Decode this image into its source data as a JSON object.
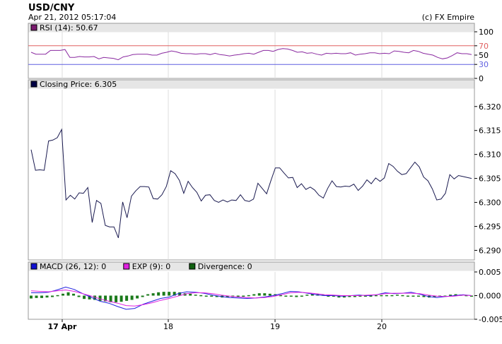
{
  "header": {
    "title": "USD/CNY",
    "timestamp": "Apr 21, 2012 05:17:04",
    "credit": "(c) FX Empire"
  },
  "x_axis": {
    "labels": [
      "17 Apr",
      "18",
      "19",
      "20"
    ],
    "bold_first": true
  },
  "chart_data": [
    {
      "type": "line",
      "panel": "rsi",
      "legend": "RSI (14): 50.67",
      "legend_color": "#7a1a6e",
      "line_color": "#8a2aa0",
      "ylim": [
        0,
        100
      ],
      "y_ticks": [
        "100",
        "70",
        "50",
        "30",
        "0"
      ],
      "y_tick_values": [
        100,
        70,
        50,
        30,
        0
      ],
      "reference_lines": [
        {
          "value": 70,
          "color": "#e06060",
          "label": "70"
        },
        {
          "value": 30,
          "color": "#6060e0",
          "label": "30"
        }
      ],
      "values": [
        56,
        52,
        52,
        52,
        60,
        60,
        60,
        62,
        45,
        45,
        47,
        46,
        46,
        47,
        42,
        45,
        44,
        43,
        40,
        46,
        48,
        51,
        52,
        52,
        52,
        50,
        50,
        54,
        56,
        59,
        57,
        54,
        53,
        53,
        52,
        53,
        53,
        51,
        54,
        51,
        50,
        48,
        50,
        51,
        53,
        54,
        52,
        56,
        60,
        60,
        58,
        62,
        64,
        63,
        60,
        56,
        57,
        54,
        55,
        52,
        50,
        54,
        53,
        54,
        53,
        53,
        55,
        50,
        52,
        53,
        55,
        55,
        53,
        54,
        53,
        59,
        58,
        56,
        55,
        60,
        58,
        54,
        52,
        50,
        45,
        42,
        44,
        49,
        55,
        53,
        53,
        51
      ]
    },
    {
      "type": "line",
      "panel": "price",
      "legend": "Closing Price: 6.305",
      "legend_color": "#000044",
      "line_color": "#1a1a50",
      "ylim": [
        6.288,
        6.3235
      ],
      "y_ticks": [
        "6.320",
        "6.315",
        "6.310",
        "6.305",
        "6.300",
        "6.295",
        "6.290"
      ],
      "y_tick_values": [
        6.32,
        6.315,
        6.31,
        6.305,
        6.3,
        6.295,
        6.29
      ],
      "values": [
        6.311,
        6.3067,
        6.3068,
        6.3067,
        6.3128,
        6.313,
        6.3135,
        6.3152,
        6.3005,
        6.3015,
        6.3007,
        6.302,
        6.3019,
        6.3031,
        6.2958,
        6.3004,
        6.2998,
        6.2952,
        6.2949,
        6.2949,
        6.2926,
        6.3001,
        6.2968,
        6.3013,
        6.3024,
        6.3033,
        6.3033,
        6.3032,
        6.3008,
        6.3007,
        6.3016,
        6.3033,
        6.3066,
        6.306,
        6.3046,
        6.3019,
        6.3044,
        6.3031,
        6.3021,
        6.3003,
        6.3015,
        6.3016,
        6.3004,
        6.3,
        6.3005,
        6.3001,
        6.3005,
        6.3004,
        6.3016,
        6.3004,
        6.3002,
        6.3007,
        6.304,
        6.3029,
        6.3018,
        6.3046,
        6.3072,
        6.3072,
        6.3061,
        6.3051,
        6.3052,
        6.3031,
        6.3039,
        6.3027,
        6.3032,
        6.3026,
        6.3015,
        6.3009,
        6.3029,
        6.3045,
        6.3033,
        6.3032,
        6.3034,
        6.3033,
        6.3038,
        6.3025,
        6.3034,
        6.3047,
        6.3039,
        6.3051,
        6.3044,
        6.3051,
        6.3081,
        6.3075,
        6.3065,
        6.3058,
        6.306,
        6.3072,
        6.3084,
        6.3074,
        6.3053,
        6.3045,
        6.3028,
        6.3005,
        6.3007,
        6.3019,
        6.3058,
        6.3049,
        6.3056,
        6.3054,
        6.3052,
        6.305
      ]
    },
    {
      "type": "line",
      "panel": "macd",
      "ylim": [
        -0.005,
        0.005
      ],
      "y_ticks": [
        "0.005",
        "0.000",
        "-0.005"
      ],
      "y_tick_values": [
        0.005,
        0.0,
        -0.005
      ],
      "legend": [
        {
          "text": "MACD (26, 12): 0",
          "color": "#1010d0"
        },
        {
          "text": "EXP (9): 0",
          "color": "#e020e0"
        },
        {
          "text": "Divergence: 0",
          "color": "#106010"
        }
      ],
      "series": [
        {
          "name": "MACD (26, 12)",
          "color": "#2020e0",
          "values": [
            0.0006,
            0.0006,
            0.0007,
            0.0012,
            0.0018,
            0.0013,
            0.0004,
            -0.0004,
            -0.0012,
            -0.0016,
            -0.0023,
            -0.0029,
            -0.0027,
            -0.0018,
            -0.0012,
            -0.0006,
            -0.0003,
            0.0004,
            0.0008,
            0.0007,
            0.0005,
            0.0001,
            -0.0002,
            -0.0004,
            -0.0005,
            -0.0006,
            -0.0005,
            -0.0003,
            0.0,
            0.0004,
            0.0009,
            0.0008,
            0.0005,
            0.0002,
            0.0,
            0.0,
            -0.0001,
            0.0,
            0.0001,
            0.0,
            0.0002,
            0.0006,
            0.0004,
            0.0005,
            0.0007,
            0.0003,
            -0.0002,
            -0.0004,
            -0.0002,
            0.0,
            0.0002,
            0.0
          ]
        },
        {
          "name": "EXP (9)",
          "color": "#e020e0",
          "values": [
            0.001,
            0.0009,
            0.0008,
            0.001,
            0.0012,
            0.0009,
            0.0004,
            -0.0001,
            -0.0007,
            -0.0012,
            -0.0016,
            -0.0021,
            -0.0022,
            -0.0019,
            -0.0015,
            -0.001,
            -0.0006,
            -0.0001,
            0.0004,
            0.0006,
            0.0006,
            0.0004,
            0.0001,
            -0.0001,
            -0.0003,
            -0.0004,
            -0.0005,
            -0.0004,
            -0.0002,
            0.0002,
            0.0006,
            0.0007,
            0.0006,
            0.0004,
            0.0002,
            0.0001,
            0.0,
            0.0,
            0.0,
            0.0001,
            0.0002,
            0.0004,
            0.0005,
            0.0005,
            0.0005,
            0.0004,
            0.0001,
            -0.0001,
            -0.0002,
            -0.0001,
            0.0001,
            0.0
          ]
        }
      ],
      "divergence": [
        -0.0006,
        -0.0005,
        -0.0005,
        -0.0004,
        -0.0003,
        0.0001,
        0.0004,
        0.0007,
        0.0004,
        -0.0003,
        -0.0007,
        -0.0008,
        -0.0009,
        -0.0011,
        -0.0012,
        -0.0014,
        -0.0014,
        -0.0013,
        -0.0011,
        -0.0009,
        -0.0006,
        -0.0003,
        0.0003,
        0.0005,
        0.0007,
        0.0008,
        0.0008,
        0.0008,
        0.0007,
        0.0005,
        0.0004,
        0.0002,
        0.0001,
        0.0,
        -0.0002,
        -0.0003,
        -0.0004,
        -0.0004,
        -0.0003,
        -0.0002,
        0.0,
        0.0001,
        0.0003,
        0.0005,
        0.0005,
        0.0004,
        0.0003,
        0.0001,
        -0.0001,
        -0.0002,
        -0.0003,
        -0.0002,
        0.0002,
        0.0003,
        0.0003,
        0.0002,
        0.0,
        -0.0001,
        -0.0004,
        -0.0004,
        -0.0003,
        -0.0003,
        -0.0002,
        0.0,
        0.0,
        0.0001,
        0.0001,
        0.0001,
        0.0001,
        0.0002,
        0.0001,
        0.0,
        -0.0001,
        -0.0002,
        -0.0003,
        -0.0004,
        -0.0003,
        -0.0002,
        0.0,
        0.0002,
        0.0003,
        0.0002,
        0.0001,
        0.0
      ]
    }
  ]
}
